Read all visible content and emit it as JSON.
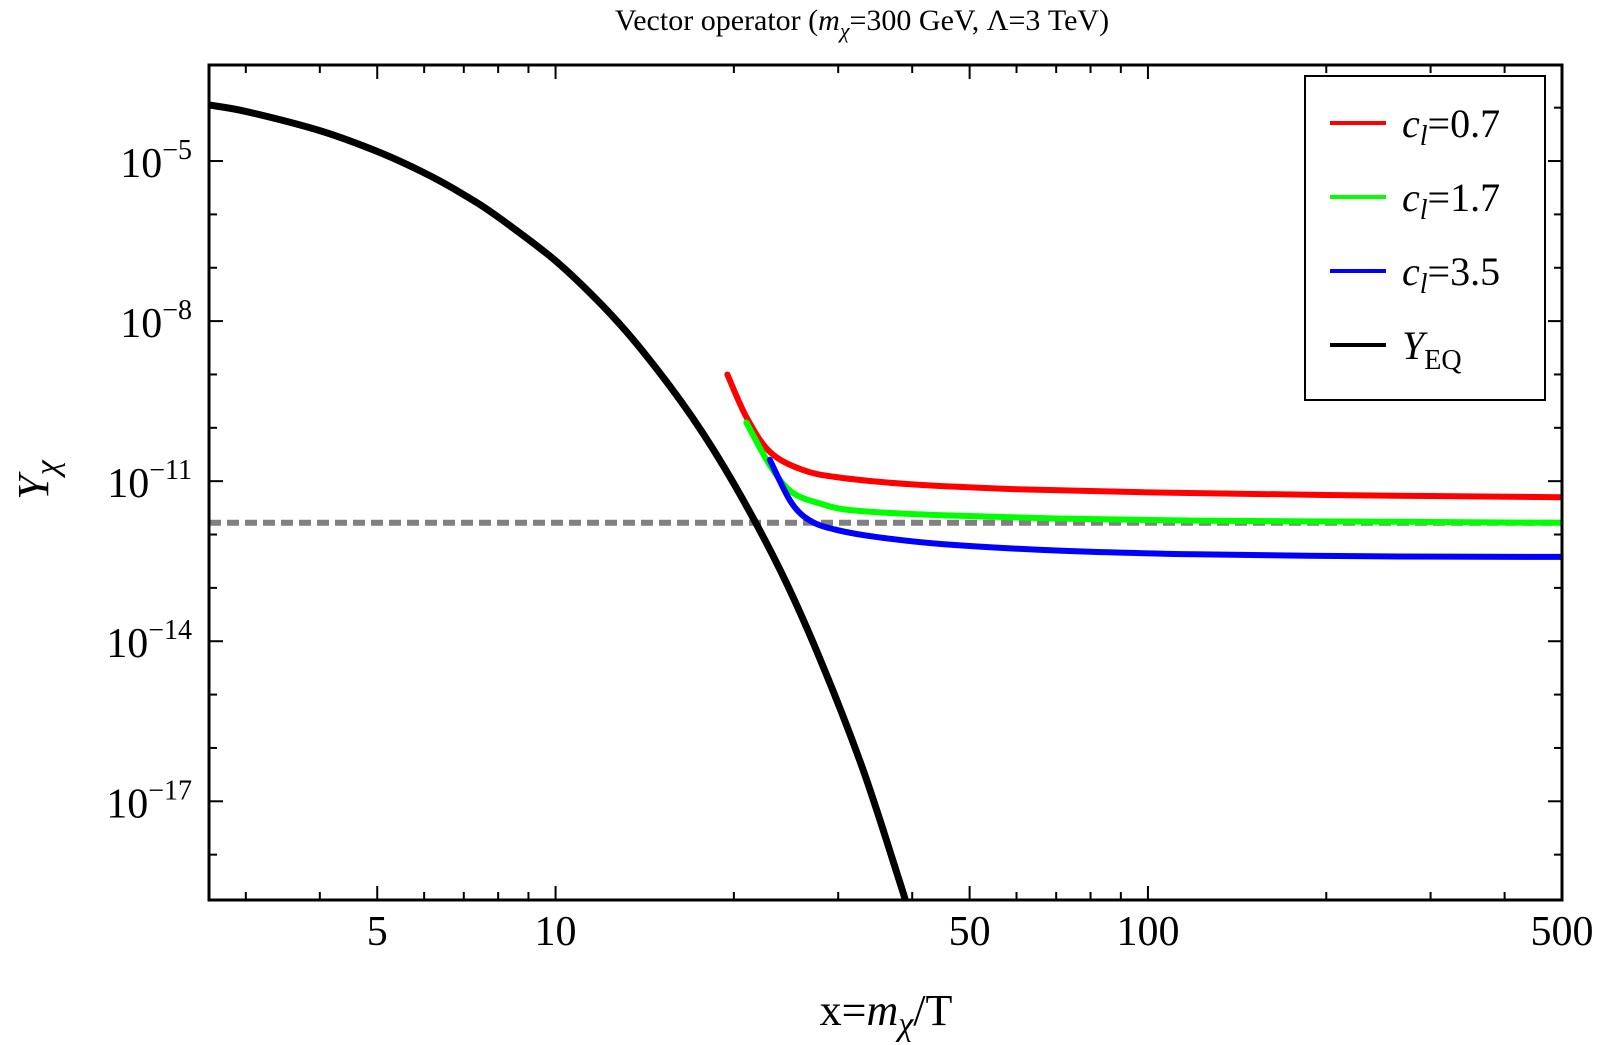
{
  "chart_data": {
    "type": "line",
    "title": {
      "prefix": "Vector operator (",
      "m": "m",
      "chi": "χ",
      "rest": "=300 GeV, Λ=3 TeV)"
    },
    "xlabel": {
      "prefix": "x=",
      "m": "m",
      "chi": "χ",
      "suffix": "/T"
    },
    "ylabel": {
      "Y": "Y",
      "chi": "χ"
    },
    "x_scale": "log",
    "y_scale": "log",
    "xlim": [
      2.6,
      500
    ],
    "ylim_log10": [
      -18.85,
      -3.2
    ],
    "x_ticks": [
      {
        "value": 5,
        "label": "5"
      },
      {
        "value": 10,
        "label": "10"
      },
      {
        "value": 50,
        "label": "50"
      },
      {
        "value": 100,
        "label": "100"
      },
      {
        "value": 500,
        "label": "500"
      }
    ],
    "y_ticks": [
      {
        "exp": -5,
        "base": "10",
        "sup": "−5"
      },
      {
        "exp": -8,
        "base": "10",
        "sup": "−8"
      },
      {
        "exp": -11,
        "base": "10",
        "sup": "−11"
      },
      {
        "exp": -14,
        "base": "10",
        "sup": "−14"
      },
      {
        "exp": -17,
        "base": "10",
        "sup": "−17"
      }
    ],
    "reference_line": {
      "log10_y": -11.78,
      "style": "dashed",
      "color": "#808080"
    },
    "series": [
      {
        "name": "c_l=0.7",
        "legend": {
          "c": "c",
          "sub": "l",
          "rest": "=0.7"
        },
        "color": "#ff0000",
        "points_log10": [
          [
            19.5,
            -9.0
          ],
          [
            21,
            -9.8
          ],
          [
            23,
            -10.45
          ],
          [
            26,
            -10.78
          ],
          [
            30,
            -10.93
          ],
          [
            40,
            -11.06
          ],
          [
            60,
            -11.15
          ],
          [
            100,
            -11.21
          ],
          [
            200,
            -11.26
          ],
          [
            500,
            -11.3
          ]
        ]
      },
      {
        "name": "c_l=1.7",
        "legend": {
          "c": "c",
          "sub": "l",
          "rest": "=1.7"
        },
        "color": "#00ff00",
        "points_log10": [
          [
            21,
            -9.9
          ],
          [
            23,
            -10.7
          ],
          [
            25,
            -11.2
          ],
          [
            28,
            -11.42
          ],
          [
            32,
            -11.55
          ],
          [
            45,
            -11.64
          ],
          [
            70,
            -11.7
          ],
          [
            120,
            -11.74
          ],
          [
            250,
            -11.76
          ],
          [
            500,
            -11.78
          ]
        ]
      },
      {
        "name": "c_l=3.5",
        "legend": {
          "c": "c",
          "sub": "l",
          "rest": "=3.5"
        },
        "color": "#0000ff",
        "points_log10": [
          [
            23,
            -10.6
          ],
          [
            25,
            -11.4
          ],
          [
            27,
            -11.75
          ],
          [
            30,
            -11.92
          ],
          [
            35,
            -12.05
          ],
          [
            45,
            -12.18
          ],
          [
            70,
            -12.3
          ],
          [
            120,
            -12.37
          ],
          [
            250,
            -12.41
          ],
          [
            500,
            -12.42
          ]
        ]
      },
      {
        "name": "Y_EQ",
        "legend": {
          "Y": "Y",
          "sub": "EQ"
        },
        "color": "#000000",
        "points_log10": [
          [
            2.6,
            -3.95
          ],
          [
            3,
            -4.07
          ],
          [
            4,
            -4.43
          ],
          [
            5,
            -4.82
          ],
          [
            6,
            -5.22
          ],
          [
            7,
            -5.63
          ],
          [
            8,
            -6.05
          ],
          [
            10,
            -6.87
          ],
          [
            12,
            -7.71
          ],
          [
            14,
            -8.55
          ],
          [
            17,
            -9.8
          ],
          [
            20,
            -11.05
          ],
          [
            24,
            -12.69
          ],
          [
            28,
            -14.35
          ],
          [
            33,
            -16.39
          ],
          [
            38,
            -18.47
          ],
          [
            39,
            -18.88
          ]
        ]
      }
    ],
    "legend_position": "top-right",
    "grid": false
  }
}
